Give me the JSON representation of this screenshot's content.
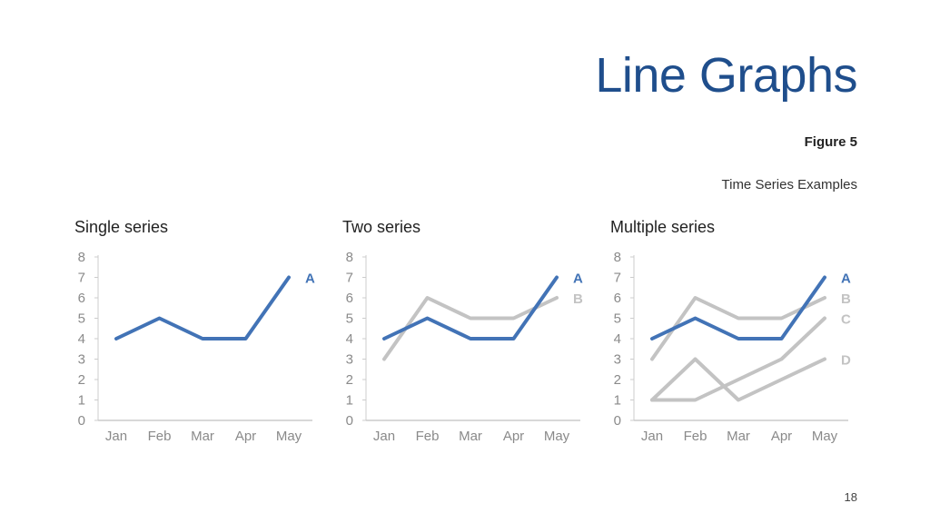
{
  "slide": {
    "title": "Line Graphs",
    "figure_label": "Figure 5",
    "caption": "Time Series Examples",
    "page_number": "18"
  },
  "colors": {
    "highlight": "#4273b6",
    "muted": "#c3c3c3",
    "axis": "#cccccc",
    "tick_text": "#8a8a8a"
  },
  "chart_data": [
    {
      "type": "line",
      "title": "Single series",
      "categories": [
        "Jan",
        "Feb",
        "Mar",
        "Apr",
        "May"
      ],
      "ylim": [
        0,
        8
      ],
      "yticks": [
        0,
        1,
        2,
        3,
        4,
        5,
        6,
        7,
        8
      ],
      "series": [
        {
          "name": "A",
          "values": [
            4,
            5,
            4,
            4,
            7
          ],
          "highlight": true
        }
      ]
    },
    {
      "type": "line",
      "title": "Two series",
      "categories": [
        "Jan",
        "Feb",
        "Mar",
        "Apr",
        "May"
      ],
      "ylim": [
        0,
        8
      ],
      "yticks": [
        0,
        1,
        2,
        3,
        4,
        5,
        6,
        7,
        8
      ],
      "series": [
        {
          "name": "B",
          "values": [
            3,
            6,
            5,
            5,
            6
          ],
          "highlight": false
        },
        {
          "name": "A",
          "values": [
            4,
            5,
            4,
            4,
            7
          ],
          "highlight": true
        }
      ]
    },
    {
      "type": "line",
      "title": "Multiple series",
      "categories": [
        "Jan",
        "Feb",
        "Mar",
        "Apr",
        "May"
      ],
      "ylim": [
        0,
        8
      ],
      "yticks": [
        0,
        1,
        2,
        3,
        4,
        5,
        6,
        7,
        8
      ],
      "series": [
        {
          "name": "B",
          "values": [
            3,
            6,
            5,
            5,
            6
          ],
          "highlight": false
        },
        {
          "name": "C",
          "values": [
            1,
            1,
            2,
            3,
            5
          ],
          "highlight": false
        },
        {
          "name": "D",
          "values": [
            1,
            3,
            1,
            2,
            3
          ],
          "highlight": false
        },
        {
          "name": "A",
          "values": [
            4,
            5,
            4,
            4,
            7
          ],
          "highlight": true
        }
      ]
    }
  ]
}
